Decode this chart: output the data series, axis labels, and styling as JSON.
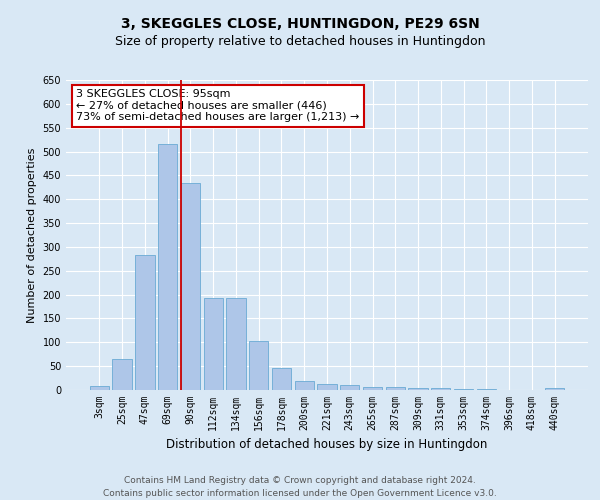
{
  "title": "3, SKEGGLES CLOSE, HUNTINGDON, PE29 6SN",
  "subtitle": "Size of property relative to detached houses in Huntingdon",
  "xlabel": "Distribution of detached houses by size in Huntingdon",
  "ylabel": "Number of detached properties",
  "categories": [
    "3sqm",
    "25sqm",
    "47sqm",
    "69sqm",
    "90sqm",
    "112sqm",
    "134sqm",
    "156sqm",
    "178sqm",
    "200sqm",
    "221sqm",
    "243sqm",
    "265sqm",
    "287sqm",
    "309sqm",
    "331sqm",
    "353sqm",
    "374sqm",
    "396sqm",
    "418sqm",
    "440sqm"
  ],
  "values": [
    9,
    65,
    283,
    515,
    435,
    193,
    193,
    103,
    47,
    19,
    12,
    10,
    7,
    6,
    5,
    4,
    3,
    2,
    1,
    1,
    4
  ],
  "bar_color": "#aec6e8",
  "bar_edge_color": "#6aaad4",
  "property_line_color": "#cc0000",
  "annotation_box_text": "3 SKEGGLES CLOSE: 95sqm\n← 27% of detached houses are smaller (446)\n73% of semi-detached houses are larger (1,213) →",
  "annotation_box_color": "#cc0000",
  "annotation_box_facecolor": "white",
  "ylim": [
    0,
    650
  ],
  "yticks": [
    0,
    50,
    100,
    150,
    200,
    250,
    300,
    350,
    400,
    450,
    500,
    550,
    600,
    650
  ],
  "background_color": "#d9e8f5",
  "plot_bg_color": "#d9e8f5",
  "grid_color": "#ffffff",
  "footer_line1": "Contains HM Land Registry data © Crown copyright and database right 2024.",
  "footer_line2": "Contains public sector information licensed under the Open Government Licence v3.0.",
  "title_fontsize": 10,
  "subtitle_fontsize": 9,
  "xlabel_fontsize": 8.5,
  "ylabel_fontsize": 8,
  "tick_fontsize": 7,
  "footer_fontsize": 6.5,
  "annot_fontsize": 8
}
